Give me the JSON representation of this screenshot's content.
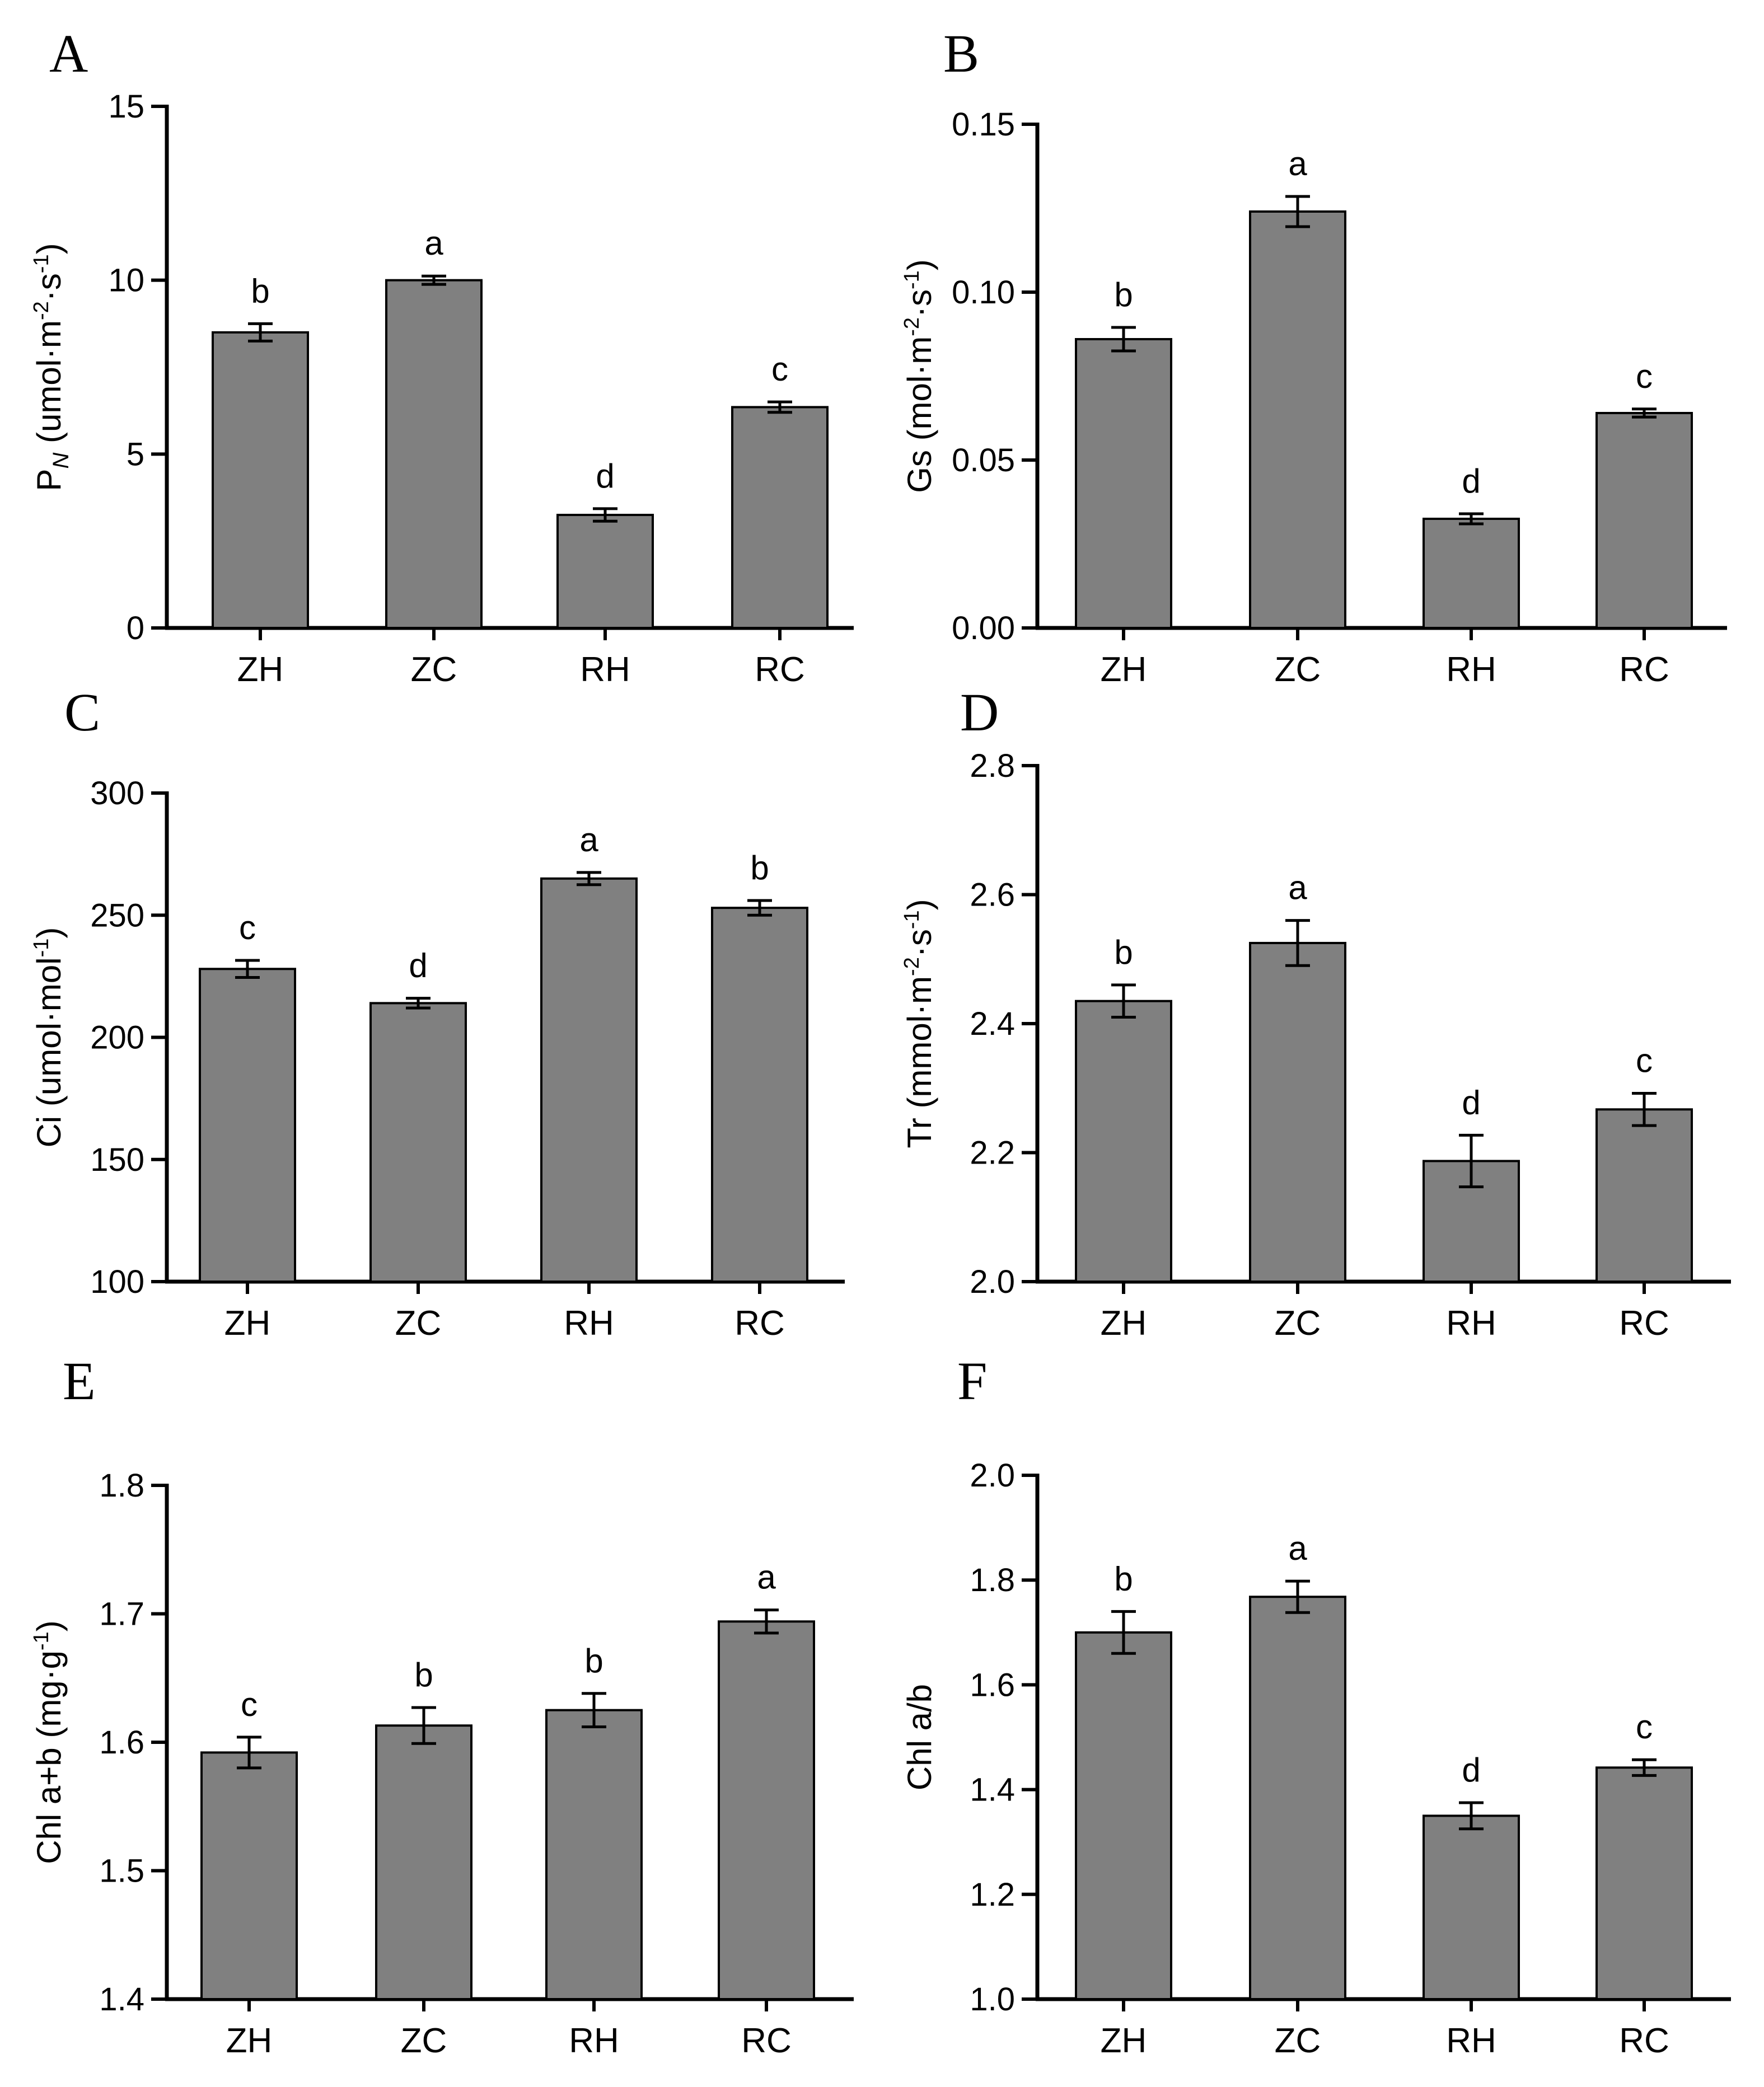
{
  "chart_data": [
    {
      "panel": "A",
      "type": "bar",
      "categories": [
        "ZH",
        "ZC",
        "RH",
        "RC"
      ],
      "values": [
        8.5,
        10.0,
        3.25,
        6.35
      ],
      "errors": [
        0.25,
        0.12,
        0.18,
        0.15
      ],
      "significance": [
        "b",
        "a",
        "d",
        "c"
      ],
      "ylabel": {
        "parts": [
          {
            "t": "P"
          },
          {
            "t": "N",
            "sub": true
          },
          {
            "t": " (umol·m"
          },
          {
            "t": "-2",
            "sup": true
          },
          {
            "t": "·s"
          },
          {
            "t": "-1",
            "sup": true
          },
          {
            "t": ")"
          }
        ]
      },
      "ylim": [
        0,
        15
      ],
      "yticks": [
        0,
        5,
        10,
        15
      ],
      "ytick_labels": [
        "0",
        "5",
        "10",
        "15"
      ]
    },
    {
      "panel": "B",
      "type": "bar",
      "categories": [
        "ZH",
        "ZC",
        "RH",
        "RC"
      ],
      "values": [
        0.086,
        0.124,
        0.0325,
        0.064
      ],
      "errors": [
        0.0035,
        0.0045,
        0.0015,
        0.0012
      ],
      "significance": [
        "b",
        "a",
        "d",
        "c"
      ],
      "ylabel": {
        "parts": [
          {
            "t": "Gs (mol·m"
          },
          {
            "t": "-2",
            "sup": true
          },
          {
            "t": "·s"
          },
          {
            "t": "-1",
            "sup": true
          },
          {
            "t": ")"
          }
        ]
      },
      "ylim": [
        0,
        0.15
      ],
      "yticks": [
        0,
        0.05,
        0.1,
        0.15
      ],
      "ytick_labels": [
        "0.00",
        "0.05",
        "0.10",
        "0.15"
      ]
    },
    {
      "panel": "C",
      "type": "bar",
      "categories": [
        "ZH",
        "ZC",
        "RH",
        "RC"
      ],
      "values": [
        228,
        214,
        265,
        253
      ],
      "errors": [
        3.5,
        2.0,
        2.5,
        3.0
      ],
      "significance": [
        "c",
        "d",
        "a",
        "b"
      ],
      "ylabel": {
        "parts": [
          {
            "t": "Ci (umol·mol"
          },
          {
            "t": "-1",
            "sup": true
          },
          {
            "t": ")"
          }
        ]
      },
      "ylim": [
        100,
        300
      ],
      "yticks": [
        100,
        150,
        200,
        250,
        300
      ],
      "ytick_labels": [
        "100",
        "150",
        "200",
        "250",
        "300"
      ]
    },
    {
      "panel": "D",
      "type": "bar",
      "categories": [
        "ZH",
        "ZC",
        "RH",
        "RC"
      ],
      "values": [
        2.435,
        2.525,
        2.187,
        2.267
      ],
      "errors": [
        0.025,
        0.035,
        0.04,
        0.025
      ],
      "significance": [
        "b",
        "a",
        "d",
        "c"
      ],
      "ylabel": {
        "parts": [
          {
            "t": "Tr (mmol·m"
          },
          {
            "t": "-2",
            "sup": true
          },
          {
            "t": "·s"
          },
          {
            "t": "-1",
            "sup": true
          },
          {
            "t": ")"
          }
        ]
      },
      "ylim": [
        2.0,
        2.8
      ],
      "yticks": [
        2.0,
        2.2,
        2.4,
        2.6,
        2.8
      ],
      "ytick_labels": [
        "2.0",
        "2.2",
        "2.4",
        "2.6",
        "2.8"
      ]
    },
    {
      "panel": "E",
      "type": "bar",
      "categories": [
        "ZH",
        "ZC",
        "RH",
        "RC"
      ],
      "values": [
        1.592,
        1.613,
        1.625,
        1.694
      ],
      "errors": [
        0.012,
        0.014,
        0.013,
        0.009
      ],
      "significance": [
        "c",
        "b",
        "b",
        "a"
      ],
      "ylabel": {
        "parts": [
          {
            "t": "Chl a+b (mg·g"
          },
          {
            "t": "-1",
            "sup": true
          },
          {
            "t": ")"
          }
        ]
      },
      "ylim": [
        1.4,
        1.8
      ],
      "yticks": [
        1.4,
        1.5,
        1.6,
        1.7,
        1.8
      ],
      "ytick_labels": [
        "1.4",
        "1.5",
        "1.6",
        "1.7",
        "1.8"
      ]
    },
    {
      "panel": "F",
      "type": "bar",
      "categories": [
        "ZH",
        "ZC",
        "RH",
        "RC"
      ],
      "values": [
        1.7,
        1.768,
        1.35,
        1.442
      ],
      "errors": [
        0.04,
        0.03,
        0.025,
        0.015
      ],
      "significance": [
        "b",
        "a",
        "d",
        "c"
      ],
      "ylabel": {
        "parts": [
          {
            "t": "Chl a/b"
          }
        ]
      },
      "ylim": [
        1.0,
        2.0
      ],
      "yticks": [
        1.0,
        1.2,
        1.4,
        1.6,
        1.8,
        2.0
      ],
      "ytick_labels": [
        "1.0",
        "1.2",
        "1.4",
        "1.6",
        "1.8",
        "2.0"
      ]
    }
  ],
  "style": {
    "bar_color": "#808080",
    "axis_color": "#000000"
  }
}
